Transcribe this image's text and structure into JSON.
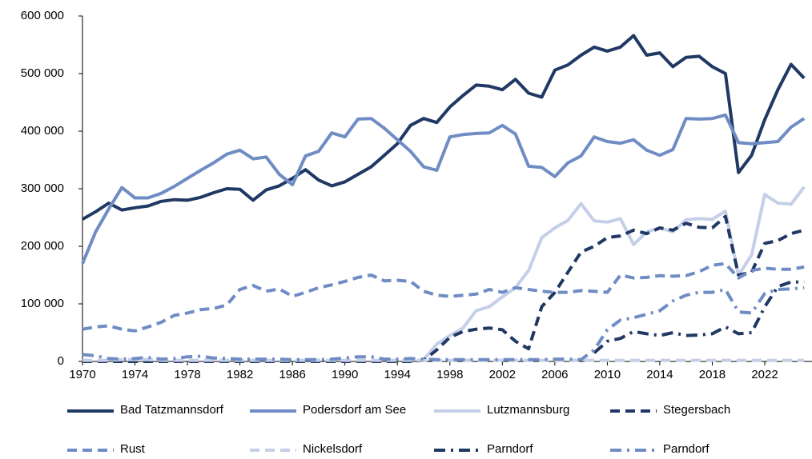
{
  "chart_data": {
    "type": "line",
    "x": [
      1970,
      1971,
      1972,
      1973,
      1974,
      1975,
      1976,
      1977,
      1978,
      1979,
      1980,
      1981,
      1982,
      1983,
      1984,
      1985,
      1986,
      1987,
      1988,
      1989,
      1990,
      1991,
      1992,
      1993,
      1994,
      1995,
      1996,
      1997,
      1998,
      1999,
      2000,
      2001,
      2002,
      2003,
      2004,
      2005,
      2006,
      2007,
      2008,
      2009,
      2010,
      2011,
      2012,
      2013,
      2014,
      2015,
      2016,
      2017,
      2018,
      2019,
      2020,
      2021,
      2022,
      2023,
      2024,
      2025
    ],
    "xlim": [
      1970,
      2025.6
    ],
    "xticks": [
      1970,
      1974,
      1978,
      1982,
      1986,
      1990,
      1994,
      1998,
      2002,
      2006,
      2010,
      2014,
      2018,
      2022
    ],
    "ylim": [
      0,
      600000
    ],
    "yticks": [
      0,
      {
        "value": 100000,
        "label": "100 000"
      },
      {
        "value": 200000,
        "label": "200 000"
      },
      {
        "value": 300000,
        "label": "300 000"
      },
      {
        "value": 400000,
        "label": "400 000"
      },
      {
        "value": 500000,
        "label": "500 000"
      },
      {
        "value": 600000,
        "label": "600 000"
      }
    ],
    "series": [
      {
        "name": "Bad Tatzmannsdorf",
        "color": "#203864",
        "linestyle": "solid",
        "values": [
          247000,
          260000,
          275000,
          263000,
          267000,
          270000,
          278000,
          281000,
          280000,
          285000,
          293000,
          300000,
          299000,
          280000,
          298000,
          305000,
          318000,
          333000,
          315000,
          305000,
          312000,
          325000,
          338000,
          358000,
          378000,
          410000,
          422000,
          415000,
          442000,
          462000,
          480000,
          478000,
          472000,
          490000,
          466000,
          459000,
          506000,
          515000,
          532000,
          546000,
          539000,
          546000,
          566000,
          532000,
          536000,
          512000,
          528000,
          530000,
          512000,
          500000,
          328000,
          358000,
          420000,
          472000,
          516000,
          492000
        ]
      },
      {
        "name": "Podersdorf am See",
        "color": "#6f8cc4",
        "linestyle": "solid",
        "values": [
          170000,
          225000,
          265000,
          302000,
          284000,
          284000,
          292000,
          304000,
          318000,
          332000,
          345000,
          360000,
          367000,
          352000,
          355000,
          325000,
          307000,
          357000,
          365000,
          397000,
          390000,
          421000,
          422000,
          405000,
          385000,
          365000,
          338000,
          332000,
          390000,
          394000,
          396000,
          397000,
          410000,
          395000,
          339000,
          337000,
          321000,
          345000,
          357000,
          390000,
          382000,
          379000,
          385000,
          367000,
          358000,
          368000,
          422000,
          421000,
          422000,
          428000,
          380000,
          378000,
          380000,
          382000,
          407000,
          422000
        ]
      },
      {
        "name": "Lutzmannsburg",
        "color": "#c5cfe8",
        "linestyle": "solid",
        "values": [
          null,
          null,
          null,
          null,
          null,
          null,
          null,
          null,
          null,
          null,
          null,
          null,
          null,
          null,
          null,
          null,
          null,
          null,
          null,
          null,
          null,
          null,
          null,
          null,
          null,
          null,
          3000,
          30000,
          45000,
          58000,
          88000,
          95000,
          112000,
          128000,
          158000,
          215000,
          232000,
          245000,
          274000,
          244000,
          242000,
          248000,
          203000,
          225000,
          232000,
          225000,
          246000,
          248000,
          247000,
          261000,
          150000,
          185000,
          290000,
          275000,
          273000,
          303000
        ]
      },
      {
        "name": "Stegersbach",
        "color": "#203864",
        "linestyle": "dashed",
        "values": [
          0,
          0,
          0,
          0,
          0,
          0,
          0,
          0,
          0,
          0,
          0,
          0,
          0,
          0,
          0,
          0,
          0,
          0,
          0,
          0,
          0,
          0,
          0,
          0,
          0,
          0,
          2000,
          20000,
          42000,
          52000,
          56000,
          58000,
          55000,
          35000,
          22000,
          95000,
          120000,
          155000,
          190000,
          200000,
          215000,
          218000,
          228000,
          222000,
          232000,
          228000,
          240000,
          233000,
          232000,
          252000,
          150000,
          155000,
          205000,
          210000,
          222000,
          228000
        ]
      },
      {
        "name": "Rust",
        "color": "#6f8cc4",
        "linestyle": "dashed",
        "values": [
          56000,
          60000,
          62000,
          56000,
          53000,
          60000,
          68000,
          80000,
          84000,
          90000,
          92000,
          98000,
          125000,
          132000,
          122000,
          126000,
          113000,
          120000,
          128000,
          133000,
          139000,
          146000,
          150000,
          140000,
          141000,
          139000,
          122000,
          115000,
          113000,
          115000,
          117000,
          125000,
          120000,
          128000,
          125000,
          122000,
          120000,
          120000,
          123000,
          122000,
          120000,
          150000,
          145000,
          146000,
          149000,
          148000,
          149000,
          156000,
          167000,
          170000,
          145000,
          158000,
          162000,
          160000,
          160000,
          164000
        ]
      },
      {
        "name": "Nickelsdorf",
        "color": "#c5cfe8",
        "linestyle": "dashed",
        "values": [
          2000,
          2000,
          2000,
          3000,
          3000,
          3000,
          2000,
          2000,
          2000,
          2000,
          2000,
          2000,
          2000,
          2000,
          2000,
          2000,
          2000,
          2000,
          2000,
          2000,
          2000,
          2000,
          2000,
          2000,
          2000,
          2000,
          2000,
          2000,
          2000,
          2000,
          2000,
          2000,
          2000,
          2000,
          2000,
          2000,
          2000,
          2000,
          2000,
          2000,
          2000,
          2000,
          2000,
          2000,
          2000,
          2000,
          2000,
          2000,
          2000,
          2000,
          2000,
          2000,
          2000,
          2000,
          2000,
          2000
        ]
      },
      {
        "name": "Parndorf",
        "color": "#203864",
        "linestyle": "dashdot",
        "values": [
          null,
          null,
          null,
          null,
          null,
          null,
          null,
          null,
          null,
          null,
          null,
          null,
          null,
          null,
          null,
          null,
          null,
          null,
          null,
          null,
          null,
          null,
          null,
          null,
          null,
          null,
          null,
          null,
          null,
          null,
          null,
          null,
          null,
          null,
          null,
          null,
          null,
          null,
          null,
          15000,
          35000,
          40000,
          52000,
          48000,
          45000,
          50000,
          45000,
          46000,
          48000,
          60000,
          48000,
          50000,
          95000,
          130000,
          138000,
          138000
        ]
      },
      {
        "name": "Parndorf",
        "color": "#6f8cc4",
        "linestyle": "dashdot",
        "values": [
          12000,
          10000,
          5000,
          4000,
          5000,
          7000,
          4000,
          5000,
          8000,
          9000,
          6000,
          5000,
          4000,
          4000,
          4000,
          4000,
          3000,
          3000,
          3000,
          4000,
          6000,
          8000,
          8000,
          4000,
          4000,
          5000,
          4000,
          3000,
          3000,
          3000,
          3000,
          3000,
          3000,
          3000,
          3000,
          3000,
          4000,
          4000,
          3000,
          20000,
          55000,
          72000,
          76000,
          82000,
          88000,
          105000,
          115000,
          120000,
          120000,
          125000,
          86000,
          84000,
          118000,
          125000,
          126000,
          128000
        ]
      }
    ]
  }
}
